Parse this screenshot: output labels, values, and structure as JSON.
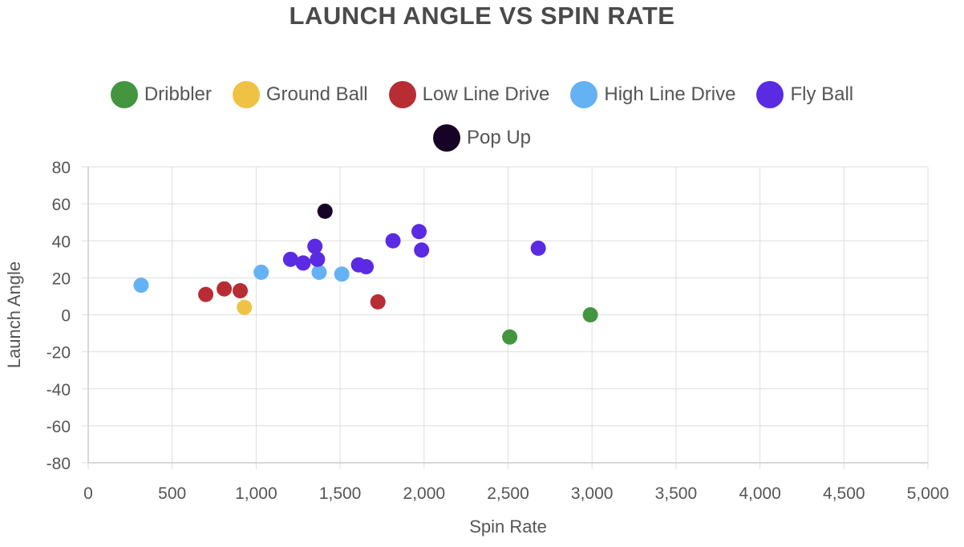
{
  "chart_data": {
    "type": "scatter",
    "title": "LAUNCH ANGLE VS SPIN RATE",
    "xlabel": "Spin Rate",
    "ylabel": "Launch Angle",
    "xlim": [
      0,
      5000
    ],
    "ylim": [
      -80,
      80
    ],
    "x_ticks": [
      "0",
      "500",
      "1,000",
      "1,500",
      "2,000",
      "2,500",
      "3,000",
      "3,500",
      "4,000",
      "4,500",
      "5,000"
    ],
    "y_ticks": [
      "80",
      "60",
      "40",
      "20",
      "0",
      "-20",
      "-40",
      "-60",
      "-80"
    ],
    "grid": true,
    "legend_position": "top",
    "series": [
      {
        "name": "Dribbler",
        "color": "#43953f",
        "points": [
          [
            2510,
            -12
          ],
          [
            2990,
            0
          ]
        ]
      },
      {
        "name": "Ground Ball",
        "color": "#f0c244",
        "points": [
          [
            930,
            4
          ]
        ]
      },
      {
        "name": "Low Line Drive",
        "color": "#b82d34",
        "points": [
          [
            700,
            11
          ],
          [
            810,
            14
          ],
          [
            905,
            13
          ],
          [
            1725,
            7
          ]
        ]
      },
      {
        "name": "High Line Drive",
        "color": "#64b2f4",
        "points": [
          [
            315,
            16
          ],
          [
            1030,
            23
          ],
          [
            1375,
            23
          ],
          [
            1510,
            22
          ]
        ]
      },
      {
        "name": "Fly Ball",
        "color": "#5a2be3",
        "points": [
          [
            1205,
            30
          ],
          [
            1280,
            28
          ],
          [
            1350,
            37
          ],
          [
            1365,
            30
          ],
          [
            1610,
            27
          ],
          [
            1655,
            26
          ],
          [
            1815,
            40
          ],
          [
            1970,
            45
          ],
          [
            1985,
            35
          ],
          [
            2680,
            36
          ]
        ]
      },
      {
        "name": "Pop Up",
        "color": "#170326",
        "points": [
          [
            1410,
            56
          ]
        ]
      }
    ]
  }
}
